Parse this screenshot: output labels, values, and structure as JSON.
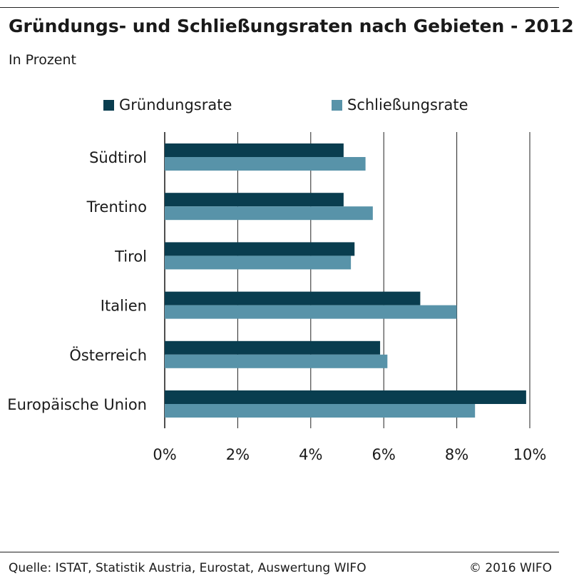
{
  "header": {
    "title": "Gründungs- und Schließungsraten nach Gebieten - 2012",
    "subtitle": "In Prozent"
  },
  "footer": {
    "source": "Quelle: ISTAT, Statistik Austria, Eurostat, Auswertung WIFO",
    "copyright": "© 2016 WIFO"
  },
  "colors": {
    "series_1": "#093d4f",
    "series_2": "#5893a9",
    "gridline": "#222222"
  },
  "chart_data": {
    "type": "bar",
    "orientation": "horizontal",
    "categories": [
      "Südtirol",
      "Trentino",
      "Tirol",
      "Italien",
      "Österreich",
      "Europäische Union"
    ],
    "series": [
      {
        "name": "Gründungsrate",
        "values": [
          4.9,
          4.9,
          5.2,
          7.0,
          5.9,
          9.9
        ]
      },
      {
        "name": "Schließungsrate",
        "values": [
          5.5,
          5.7,
          5.1,
          8.0,
          6.1,
          8.5
        ]
      }
    ],
    "xlim": [
      0,
      10
    ],
    "xticks": [
      0,
      2,
      4,
      6,
      8,
      10
    ],
    "xtick_labels": [
      "0%",
      "2%",
      "4%",
      "6%",
      "8%",
      "10%"
    ],
    "xlabel": "",
    "ylabel": "",
    "grid": true,
    "legend_position": "top"
  }
}
